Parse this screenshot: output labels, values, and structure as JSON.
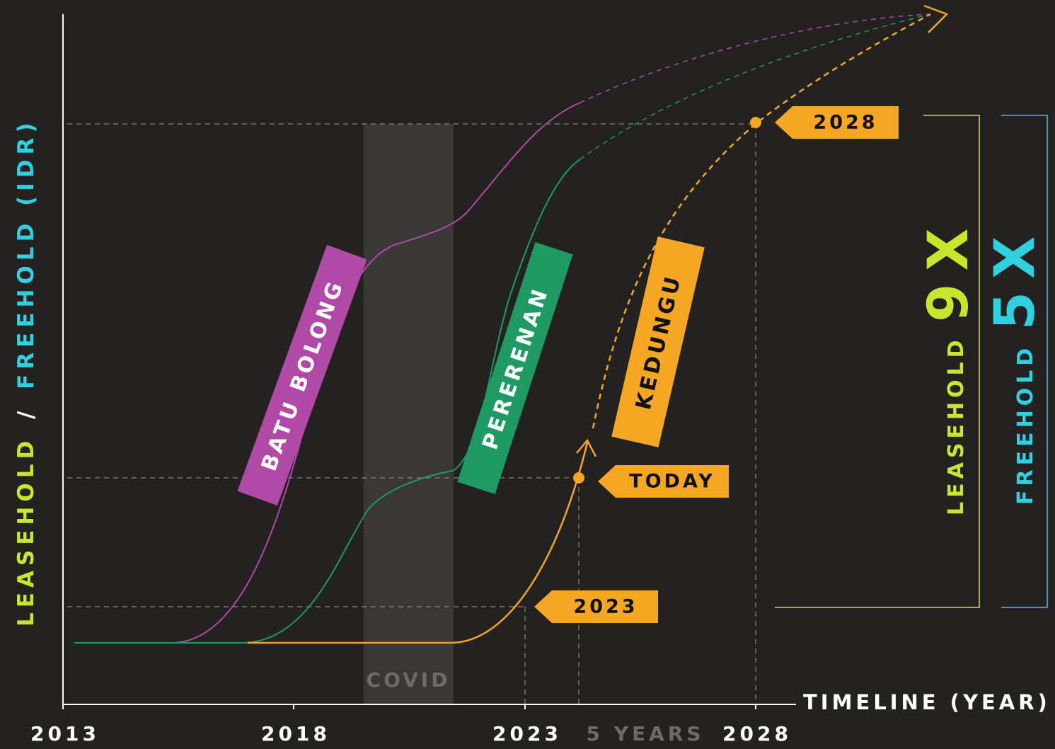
{
  "axes": {
    "y_label_parts": [
      "LEASEHOLD",
      "/",
      "FREEHOLD (IDR)"
    ],
    "x_label": "TIMELINE (YEAR)",
    "x_ticks": [
      "2013",
      "2018",
      "2023",
      "5 YEARS",
      "2028"
    ]
  },
  "shade_label": "COVID",
  "areas": [
    "BATU BOLONG",
    "PERERENAN",
    "KEDUNGU"
  ],
  "markers": [
    "2028",
    "TODAY",
    "2023"
  ],
  "multipliers": [
    {
      "label": "LEASEHOLD",
      "value": "9X"
    },
    {
      "label": "FREEHOLD",
      "value": "5X"
    }
  ]
}
